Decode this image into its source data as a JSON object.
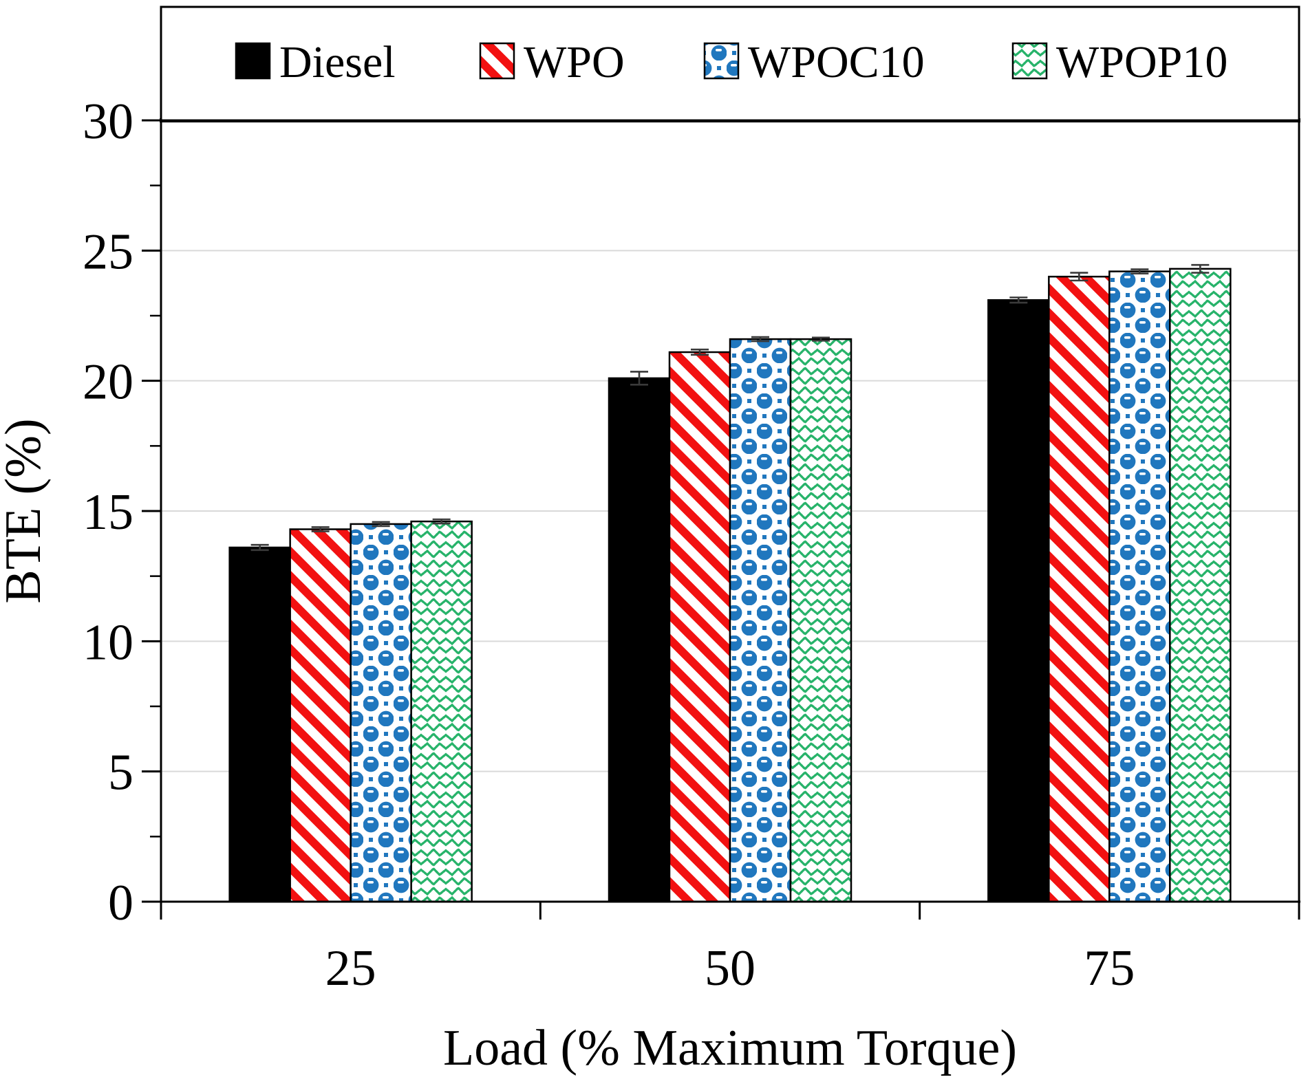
{
  "chart_data": {
    "type": "bar",
    "title": "",
    "xlabel": "Load (% Maximum Torque)",
    "ylabel": "BTE (%)",
    "categories": [
      "25",
      "50",
      "75"
    ],
    "series": [
      {
        "name": "Diesel",
        "pattern": "solid",
        "color": "#000000",
        "values": [
          13.6,
          20.1,
          23.1
        ],
        "errors": [
          0.1,
          0.25,
          0.1
        ]
      },
      {
        "name": "WPO",
        "pattern": "diagonal-stripes",
        "color": "#F21111",
        "values": [
          14.3,
          21.1,
          24.0
        ],
        "errors": [
          0.08,
          0.1,
          0.15
        ]
      },
      {
        "name": "WPOC10",
        "pattern": "spheres",
        "color": "#2077BE",
        "values": [
          14.5,
          21.6,
          24.2
        ],
        "errors": [
          0.08,
          0.08,
          0.08
        ]
      },
      {
        "name": "WPOP10",
        "pattern": "herringbone",
        "color": "#27B36A",
        "values": [
          14.6,
          21.6,
          24.3
        ],
        "errors": [
          0.08,
          0.06,
          0.15
        ]
      }
    ],
    "ylim": [
      0,
      30
    ],
    "yticks": [
      0,
      5,
      10,
      15,
      20,
      25,
      30
    ],
    "yminor_step": 2.5,
    "grid": "horizontal-major",
    "gridline_color": "#D9D9D9",
    "errorbar_color": "#3A3A3A",
    "legend_position": "top"
  }
}
